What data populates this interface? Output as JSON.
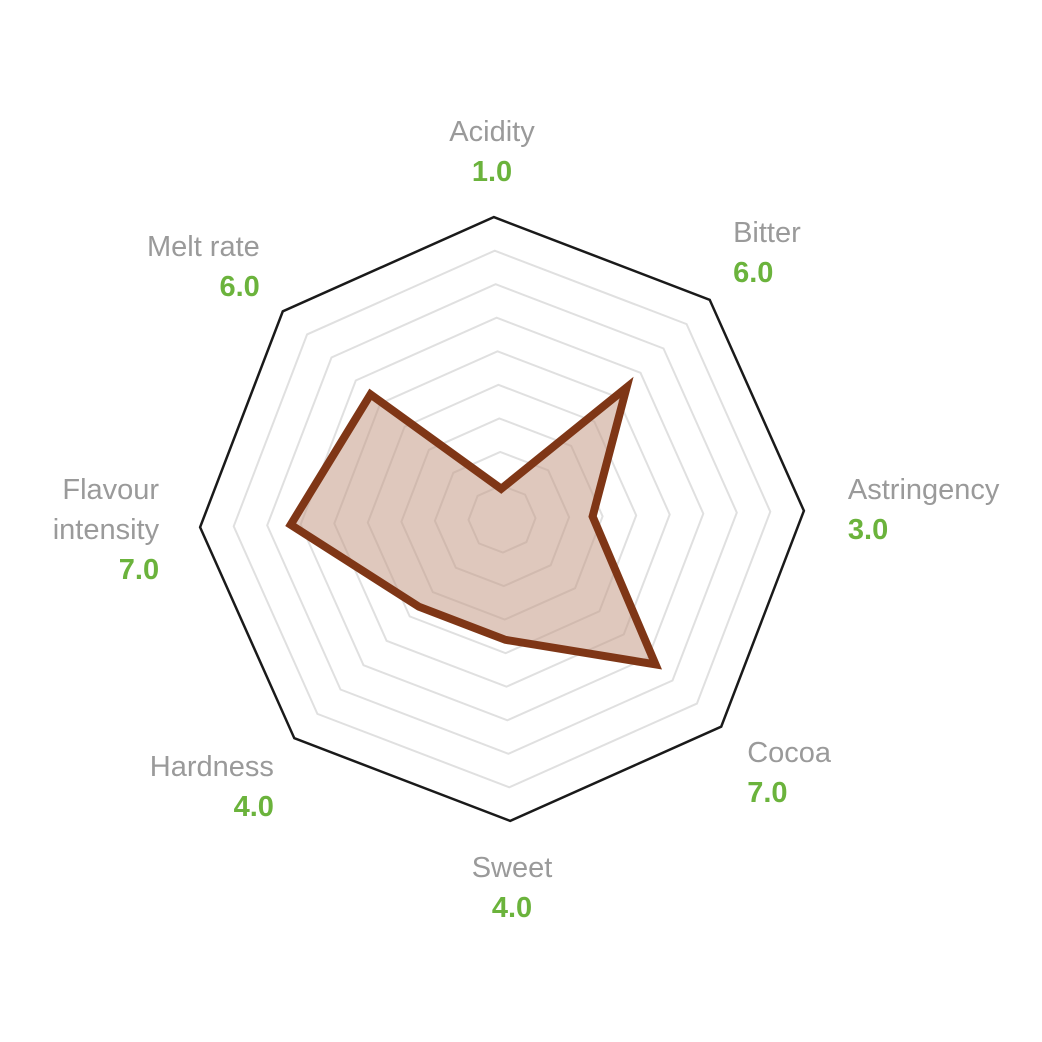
{
  "chart_data": {
    "type": "radar",
    "axes": [
      {
        "name": "Acidity",
        "label_lines": [
          "Acidity"
        ],
        "value": 1.0,
        "display": "1.0"
      },
      {
        "name": "Bitter",
        "label_lines": [
          "Bitter"
        ],
        "value": 6.0,
        "display": "6.0"
      },
      {
        "name": "Astringency",
        "label_lines": [
          "Astringency"
        ],
        "value": 3.0,
        "display": "3.0"
      },
      {
        "name": "Cocoa",
        "label_lines": [
          "Cocoa"
        ],
        "value": 7.0,
        "display": "7.0"
      },
      {
        "name": "Sweet",
        "label_lines": [
          "Sweet"
        ],
        "value": 4.0,
        "display": "4.0"
      },
      {
        "name": "Hardness",
        "label_lines": [
          "Hardness"
        ],
        "value": 4.0,
        "display": "4.0"
      },
      {
        "name": "Flavour intensity",
        "label_lines": [
          "Flavour",
          "intensity"
        ],
        "value": 7.0,
        "display": "7.0"
      },
      {
        "name": "Melt rate",
        "label_lines": [
          "Melt rate"
        ],
        "value": 6.0,
        "display": "6.0"
      }
    ],
    "range": [
      0,
      10
    ],
    "grid_levels": 8,
    "grid": true,
    "colors": {
      "outline": "#1a1a1a",
      "grid": "#e0e0e0",
      "series_stroke": "#7f3616",
      "series_fill": "#c49a86",
      "axis_label": "#9a9a9a",
      "value_label": "#6bb33c"
    }
  }
}
